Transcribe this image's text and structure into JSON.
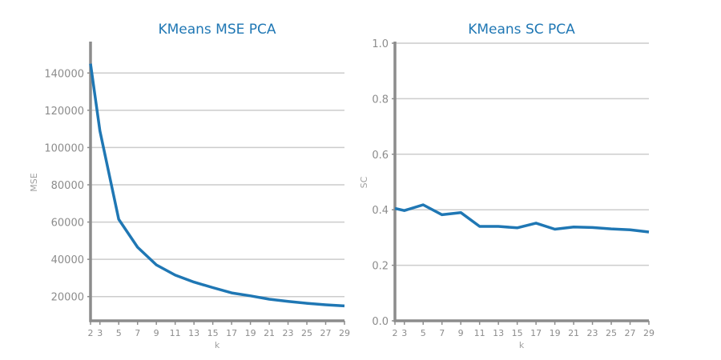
{
  "chart_data": [
    {
      "type": "line",
      "title": "KMeans MSE PCA",
      "xlabel": "k",
      "ylabel": "MSE",
      "x": [
        2,
        3,
        5,
        7,
        9,
        11,
        13,
        15,
        17,
        19,
        21,
        23,
        25,
        27,
        29
      ],
      "xticks": [
        2,
        3,
        5,
        7,
        9,
        11,
        13,
        15,
        17,
        19,
        21,
        23,
        25,
        27,
        29
      ],
      "yticks": [
        20000,
        40000,
        60000,
        80000,
        100000,
        120000,
        140000
      ],
      "xlim": [
        2,
        29
      ],
      "ylim": [
        7000,
        156000
      ],
      "grid": "horizontal",
      "color": "#1f77b4",
      "series": [
        {
          "values": [
            145000,
            109000,
            61500,
            46500,
            37000,
            31500,
            27800,
            24800,
            22000,
            20400,
            18600,
            17400,
            16400,
            15600,
            15000
          ]
        }
      ]
    },
    {
      "type": "line",
      "title": "KMeans SC PCA",
      "xlabel": "k",
      "ylabel": "SC",
      "x": [
        2,
        3,
        5,
        7,
        9,
        11,
        13,
        15,
        17,
        19,
        21,
        23,
        25,
        27,
        29
      ],
      "xticks": [
        2,
        3,
        5,
        7,
        9,
        11,
        13,
        15,
        17,
        19,
        21,
        23,
        25,
        27,
        29
      ],
      "yticks": [
        "0.0",
        "0.2",
        "0.4",
        "0.6",
        "0.8",
        "1.0"
      ],
      "xlim": [
        2,
        29
      ],
      "ylim": [
        0,
        1
      ],
      "grid": "horizontal",
      "color": "#1f77b4",
      "series": [
        {
          "values": [
            0.405,
            0.397,
            0.418,
            0.382,
            0.39,
            0.34,
            0.34,
            0.335,
            0.352,
            0.33,
            0.338,
            0.336,
            0.331,
            0.328,
            0.32
          ]
        }
      ]
    }
  ]
}
